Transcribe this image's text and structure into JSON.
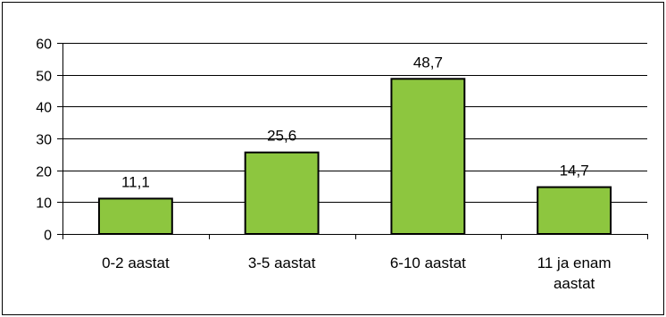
{
  "chart_data": {
    "type": "bar",
    "categories": [
      "0-2 aastat",
      "3-5 aastat",
      "6-10 aastat",
      "11 ja enam aastat"
    ],
    "category_lines": [
      [
        "0-2 aastat"
      ],
      [
        "3-5 aastat"
      ],
      [
        "6-10 aastat"
      ],
      [
        "11 ja enam",
        "aastat"
      ]
    ],
    "values": [
      11.1,
      25.6,
      48.7,
      14.7
    ],
    "value_labels": [
      "11,1",
      "25,6",
      "48,7",
      "14,7"
    ],
    "y_ticks": [
      "0",
      "10",
      "20",
      "30",
      "40",
      "50",
      "60"
    ],
    "ylim": [
      0,
      60
    ],
    "grid": true,
    "legend": false,
    "bar_color": "#8dc63f",
    "bar_border_color": "#000000",
    "gridline_color": "#000000"
  }
}
